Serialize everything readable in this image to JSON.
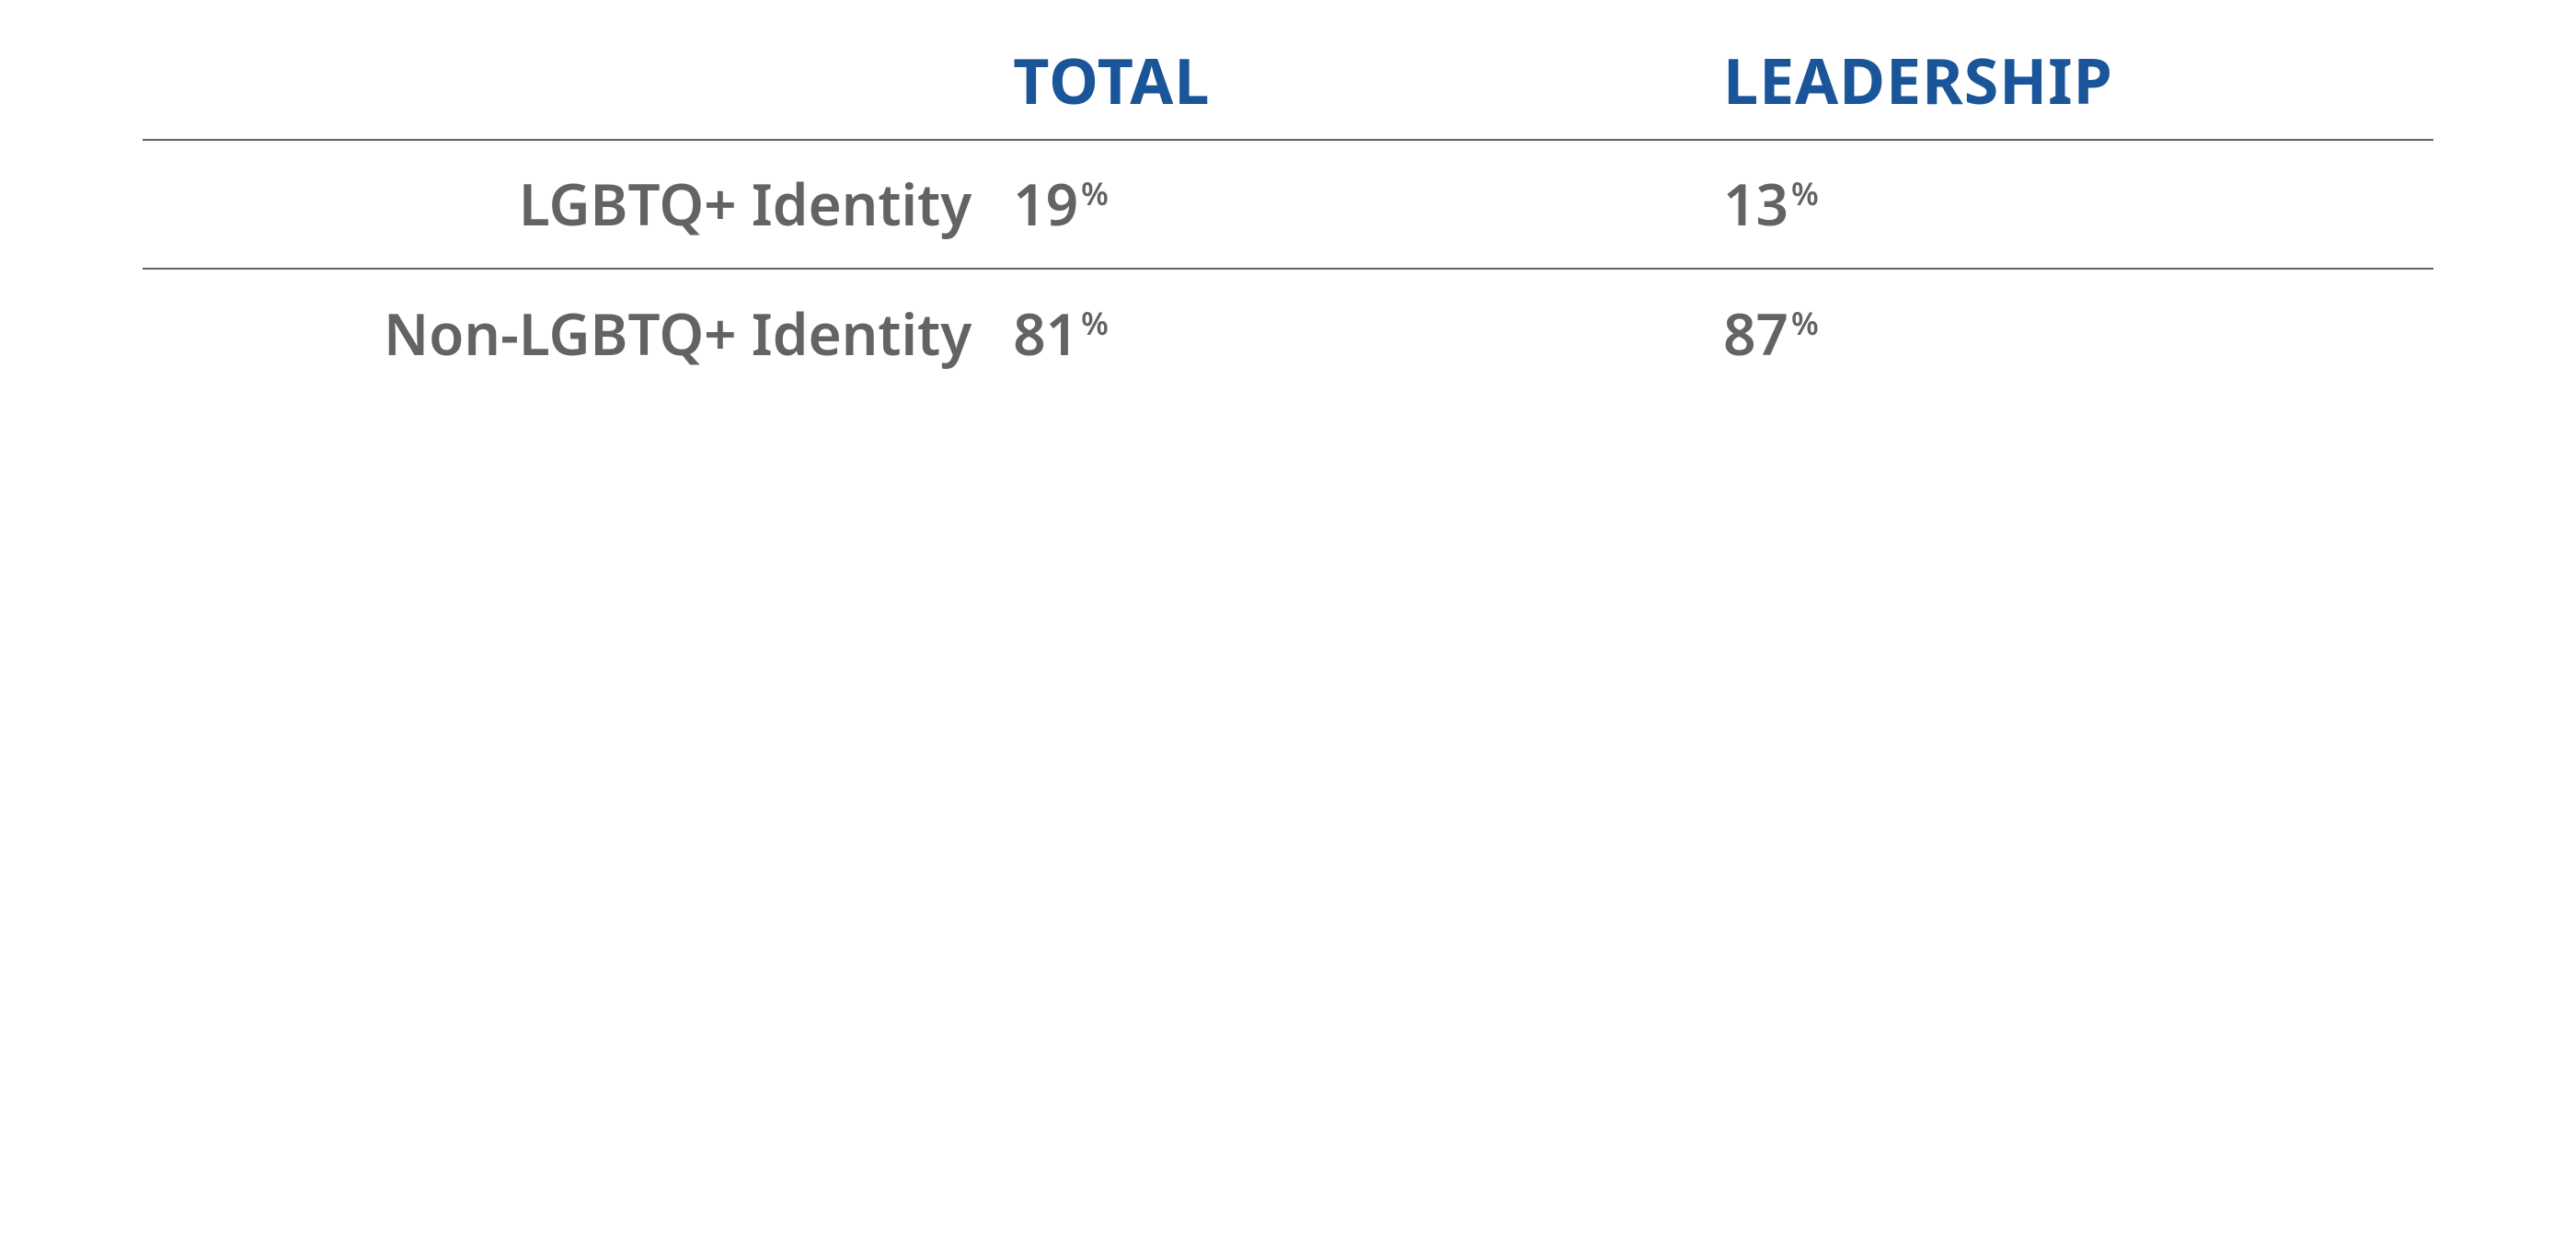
{
  "table": {
    "type": "table",
    "header_color": "#1a5599",
    "text_color": "#636363",
    "border_color": "#636363",
    "background_color": "#ffffff",
    "value_suffix": "%",
    "header_fontsize_pt": 51,
    "label_fontsize_pt": 46,
    "value_fontsize_pt": 46,
    "suffix_fontsize_pt": 26,
    "columns": [
      {
        "key": "label",
        "header": "",
        "align": "right",
        "width_pct": 38
      },
      {
        "key": "total",
        "header": "TOTAL",
        "align": "left",
        "width_pct": 31
      },
      {
        "key": "leadership",
        "header": "LEADERSHIP",
        "align": "left",
        "width_pct": 31
      }
    ],
    "rows": [
      {
        "label": "LGBTQ+ Identity",
        "total": "19",
        "leadership": "13"
      },
      {
        "label": "Non-LGBTQ+ Identity",
        "total": "81",
        "leadership": "87"
      }
    ]
  }
}
